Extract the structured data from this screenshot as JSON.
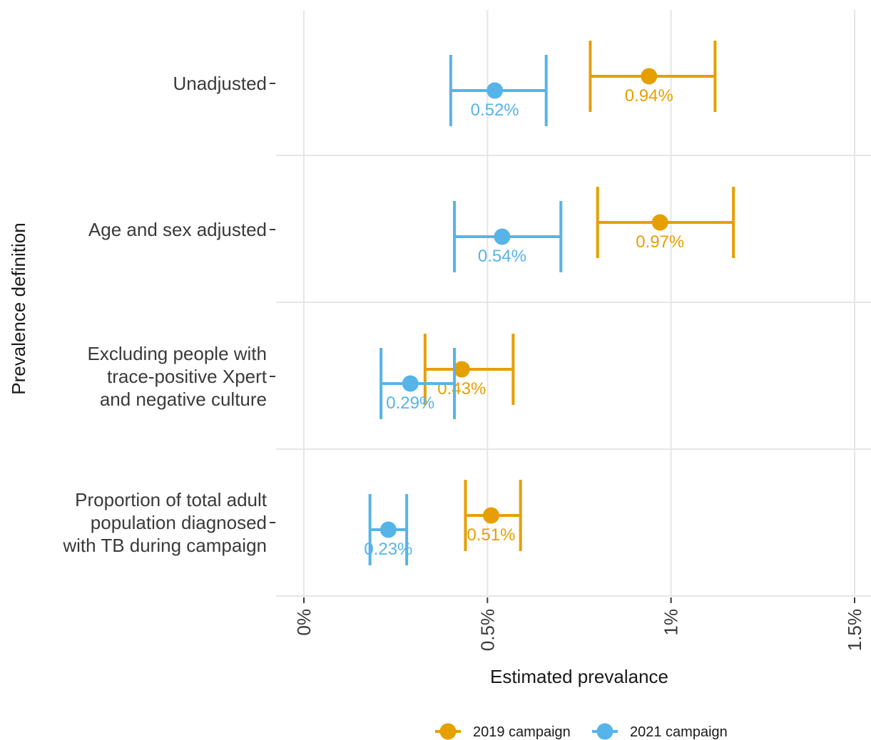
{
  "chart_data": {
    "type": "scatter",
    "orientation": "horizontal",
    "xlabel": "Estimated prevalance",
    "ylabel": "Prevalence definition",
    "xlim": [
      0,
      1.5
    ],
    "x_ticks": [
      {
        "value": 0,
        "label": "0%"
      },
      {
        "value": 0.5,
        "label": "0.5%"
      },
      {
        "value": 1.0,
        "label": "1%"
      },
      {
        "value": 1.5,
        "label": "1.5%"
      }
    ],
    "grid": true,
    "legend_position": "bottom",
    "categories": [
      {
        "lines": [
          "Unadjusted"
        ]
      },
      {
        "lines": [
          "Age and sex adjusted"
        ]
      },
      {
        "lines": [
          "Excluding people with",
          "trace-positive Xpert",
          "and negative culture"
        ]
      },
      {
        "lines": [
          "Proportion of total adult",
          "population diagnosed",
          "with TB during campaign"
        ]
      }
    ],
    "series": [
      {
        "name": "2019 campaign",
        "color": "#E69F00",
        "points": [
          {
            "value": 0.94,
            "lower": 0.78,
            "upper": 1.12,
            "label": "0.94%"
          },
          {
            "value": 0.97,
            "lower": 0.8,
            "upper": 1.17,
            "label": "0.97%"
          },
          {
            "value": 0.43,
            "lower": 0.33,
            "upper": 0.57,
            "label": "0.43%"
          },
          {
            "value": 0.51,
            "lower": 0.44,
            "upper": 0.59,
            "label": "0.51%"
          }
        ]
      },
      {
        "name": "2021 campaign",
        "color": "#56B4E9",
        "points": [
          {
            "value": 0.52,
            "lower": 0.4,
            "upper": 0.66,
            "label": "0.52%"
          },
          {
            "value": 0.54,
            "lower": 0.41,
            "upper": 0.7,
            "label": "0.54%"
          },
          {
            "value": 0.29,
            "lower": 0.21,
            "upper": 0.41,
            "label": "0.29%"
          },
          {
            "value": 0.23,
            "lower": 0.18,
            "upper": 0.28,
            "label": "0.23%"
          }
        ]
      }
    ]
  }
}
